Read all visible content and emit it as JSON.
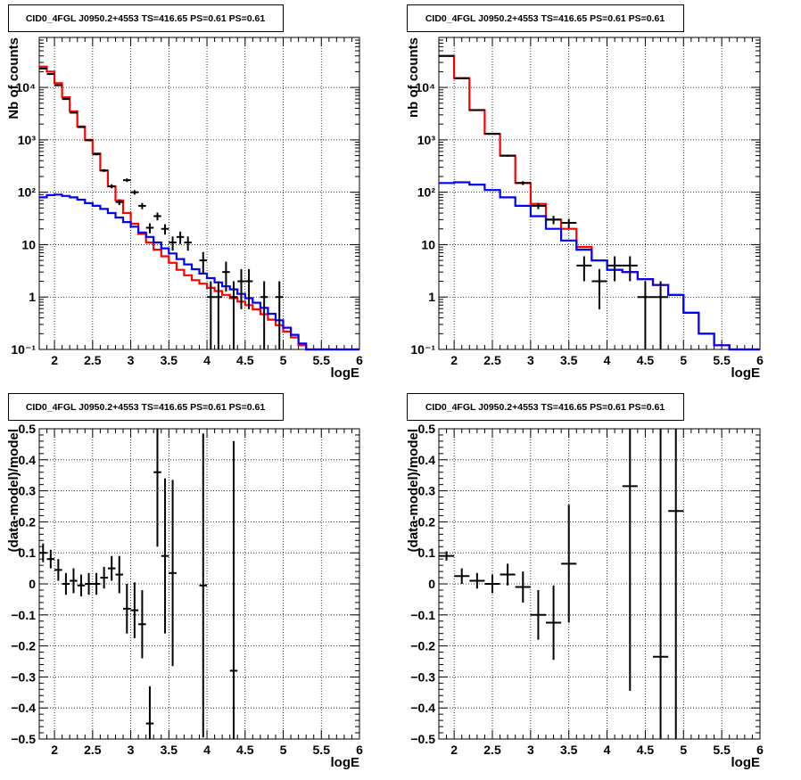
{
  "colors": {
    "data": "#000000",
    "model_total": "#ff0000",
    "model_component": "#0000ff",
    "grid": "#000000"
  },
  "chart_data": [
    {
      "type": "line",
      "title": "CID0_4FGL J0950.2+4553 TS=416.65 PS=0.61 PS=0.61",
      "xlabel": "logE",
      "ylabel": "Nb of counts",
      "xlim": [
        1.8,
        6.0
      ],
      "ylim": [
        0.1,
        90000
      ],
      "yscale": "log",
      "grid": true,
      "x_ticks": [
        "2",
        "2.5",
        "3",
        "3.5",
        "4",
        "4.5",
        "5",
        "5.5",
        "6"
      ],
      "y_ticks": [
        "10⁻¹",
        "1",
        "10",
        "10²",
        "10³",
        "10⁴"
      ],
      "bin_edges": [
        1.8,
        1.9,
        2.0,
        2.1,
        2.2,
        2.3,
        2.4,
        2.5,
        2.6,
        2.7,
        2.8,
        2.9,
        3.0,
        3.1,
        3.2,
        3.3,
        3.4,
        3.5,
        3.6,
        3.7,
        3.8,
        3.9,
        4.0,
        4.1,
        4.2,
        4.3,
        4.4,
        4.5,
        4.6,
        4.7,
        4.8,
        4.9,
        5.0,
        5.1,
        5.2,
        5.3,
        5.4,
        5.5,
        5.6,
        5.7,
        5.8,
        5.9,
        6.0
      ],
      "series": [
        {
          "role": "model_total",
          "values": [
            25000,
            20000,
            12000,
            6500,
            3500,
            1800,
            1000,
            550,
            260,
            130,
            70,
            40,
            25,
            16,
            11,
            8,
            6,
            4.5,
            3.3,
            2.6,
            2.1,
            1.8,
            1.5,
            1.3,
            1.1,
            0.95,
            0.82,
            0.7,
            0.58,
            0.47,
            0.37,
            0.29,
            0.22,
            0.17,
            0.12,
            0.1,
            0.1,
            0.1,
            0.1,
            0.1,
            0.1,
            0.1
          ]
        },
        {
          "role": "model_component",
          "values": [
            80,
            88,
            90,
            85,
            80,
            72,
            62,
            55,
            48,
            40,
            33,
            27,
            22,
            17,
            14,
            11,
            8.5,
            6.8,
            5.3,
            4.2,
            3.4,
            2.8,
            2.3,
            1.9,
            1.6,
            1.4,
            1.15,
            0.95,
            0.78,
            0.62,
            0.48,
            0.36,
            0.26,
            0.19,
            0.13,
            0.1,
            0.1,
            0.1,
            0.1,
            0.1,
            0.1,
            0.1
          ]
        },
        {
          "role": "data",
          "points": [
            {
              "x": 1.85,
              "y": 23000,
              "xerr": 0.05
            },
            {
              "x": 1.95,
              "y": 18000,
              "xerr": 0.05
            },
            {
              "x": 2.05,
              "y": 11000,
              "xerr": 0.05
            },
            {
              "x": 2.15,
              "y": 6000,
              "xerr": 0.05
            },
            {
              "x": 2.25,
              "y": 3300,
              "xerr": 0.05
            },
            {
              "x": 2.35,
              "y": 1750,
              "xerr": 0.05
            },
            {
              "x": 2.45,
              "y": 980,
              "xerr": 0.05
            },
            {
              "x": 2.55,
              "y": 530,
              "xerr": 0.05
            },
            {
              "x": 2.65,
              "y": 260,
              "xerr": 0.05
            },
            {
              "x": 2.75,
              "y": 130,
              "xerr": 0.05
            },
            {
              "x": 2.85,
              "y": 65,
              "xerr": 0.05
            },
            {
              "x": 2.95,
              "y": 170,
              "xerr": 0.05
            },
            {
              "x": 3.05,
              "y": 100,
              "xerr": 0.05
            },
            {
              "x": 3.15,
              "y": 55,
              "xerr": 0.05
            },
            {
              "x": 3.25,
              "y": 21,
              "xerr": 0.05
            },
            {
              "x": 3.35,
              "y": 35,
              "xerr": 0.05
            },
            {
              "x": 3.45,
              "y": 20,
              "xerr": 0.05
            },
            {
              "x": 3.55,
              "y": 11,
              "xerr": 0.05
            },
            {
              "x": 3.65,
              "y": 14,
              "xerr": 0.05
            },
            {
              "x": 3.75,
              "y": 11,
              "xerr": 0.05
            },
            {
              "x": 3.95,
              "y": 5,
              "xerr": 0.05
            },
            {
              "x": 4.05,
              "y": 1,
              "xerr": 0.05
            },
            {
              "x": 4.15,
              "y": 1,
              "xerr": 0.05
            },
            {
              "x": 4.25,
              "y": 3,
              "xerr": 0.05
            },
            {
              "x": 4.35,
              "y": 1,
              "xerr": 0.05
            },
            {
              "x": 4.45,
              "y": 2,
              "xerr": 0.05
            },
            {
              "x": 4.55,
              "y": 2,
              "xerr": 0.05
            },
            {
              "x": 4.75,
              "y": 1,
              "xerr": 0.05
            },
            {
              "x": 4.95,
              "y": 1,
              "xerr": 0.05
            }
          ]
        }
      ]
    },
    {
      "type": "line",
      "title": "CID0_4FGL J0950.2+4553 TS=416.65 PS=0.61 PS=0.61",
      "xlabel": "logE",
      "ylabel": "nb of counts",
      "xlim": [
        1.8,
        6.0
      ],
      "ylim": [
        0.1,
        90000
      ],
      "yscale": "log",
      "grid": true,
      "x_ticks": [
        "2",
        "2.5",
        "3",
        "3.5",
        "4",
        "4.5",
        "5",
        "5.5",
        "6"
      ],
      "y_ticks": [
        "10⁻¹",
        "1",
        "10",
        "10²",
        "10³",
        "10⁴"
      ],
      "bin_edges": [
        1.8,
        2.0,
        2.2,
        2.4,
        2.6,
        2.8,
        3.0,
        3.2,
        3.4,
        3.6,
        3.8,
        4.0,
        4.2,
        4.4,
        4.6,
        4.8,
        5.0,
        5.2,
        5.4,
        5.6,
        5.8,
        6.0
      ],
      "series": [
        {
          "role": "model_total",
          "values": [
            40000,
            15000,
            3700,
            1300,
            500,
            150,
            60,
            30,
            20,
            9,
            5,
            3.3,
            3.0,
            2.2,
            1.7,
            1.1,
            0.5,
            0.2,
            0.12,
            0.1,
            0.1
          ]
        },
        {
          "role": "model_component",
          "values": [
            150,
            155,
            140,
            110,
            80,
            55,
            35,
            20,
            12,
            8,
            5,
            3.3,
            3.0,
            2.2,
            1.7,
            1.1,
            0.5,
            0.2,
            0.12,
            0.1,
            0.1
          ]
        },
        {
          "role": "data",
          "points": [
            {
              "x": 1.9,
              "y": 40000,
              "xerr": 0.1
            },
            {
              "x": 2.1,
              "y": 15000,
              "xerr": 0.1
            },
            {
              "x": 2.3,
              "y": 3700,
              "xerr": 0.1
            },
            {
              "x": 2.5,
              "y": 1300,
              "xerr": 0.1
            },
            {
              "x": 2.7,
              "y": 500,
              "xerr": 0.1
            },
            {
              "x": 2.9,
              "y": 150,
              "xerr": 0.1
            },
            {
              "x": 3.1,
              "y": 55,
              "xerr": 0.1
            },
            {
              "x": 3.3,
              "y": 30,
              "xerr": 0.1
            },
            {
              "x": 3.5,
              "y": 26,
              "xerr": 0.1
            },
            {
              "x": 3.7,
              "y": 4,
              "xerr": 0.1
            },
            {
              "x": 3.9,
              "y": 2,
              "xerr": 0.1
            },
            {
              "x": 4.1,
              "y": 4,
              "xerr": 0.1
            },
            {
              "x": 4.3,
              "y": 4,
              "xerr": 0.1
            },
            {
              "x": 4.5,
              "y": 1,
              "xerr": 0.1
            },
            {
              "x": 4.7,
              "y": 1,
              "xerr": 0.1
            }
          ]
        }
      ]
    },
    {
      "type": "scatter",
      "title": "CID0_4FGL J0950.2+4553 TS=416.65 PS=0.61 PS=0.61",
      "xlabel": "logE",
      "ylabel": "(data-model)/model",
      "xlim": [
        1.8,
        6.0
      ],
      "ylim": [
        -0.5,
        0.5
      ],
      "yscale": "linear",
      "grid": true,
      "x_ticks": [
        "2",
        "2.5",
        "3",
        "3.5",
        "4",
        "4.5",
        "5",
        "5.5",
        "6"
      ],
      "y_ticks": [
        "−0.5",
        "−0.4",
        "−0.3",
        "−0.2",
        "−0.1",
        "0",
        "0.1",
        "0.2",
        "0.3",
        "0.4",
        "0.5"
      ],
      "series": [
        {
          "role": "data",
          "points": [
            {
              "x": 1.85,
              "y": 0.1,
              "xerr": 0.05,
              "yerr": 0.03
            },
            {
              "x": 1.95,
              "y": 0.08,
              "xerr": 0.05,
              "yerr": 0.03
            },
            {
              "x": 2.05,
              "y": 0.045,
              "xerr": 0.05,
              "yerr": 0.035
            },
            {
              "x": 2.15,
              "y": 0.0,
              "xerr": 0.05,
              "yerr": 0.035
            },
            {
              "x": 2.25,
              "y": 0.01,
              "xerr": 0.05,
              "yerr": 0.04
            },
            {
              "x": 2.35,
              "y": -0.005,
              "xerr": 0.05,
              "yerr": 0.035
            },
            {
              "x": 2.45,
              "y": 0.0,
              "xerr": 0.05,
              "yerr": 0.035
            },
            {
              "x": 2.55,
              "y": 0.0,
              "xerr": 0.05,
              "yerr": 0.035
            },
            {
              "x": 2.65,
              "y": 0.02,
              "xerr": 0.05,
              "yerr": 0.035
            },
            {
              "x": 2.75,
              "y": 0.05,
              "xerr": 0.05,
              "yerr": 0.04
            },
            {
              "x": 2.85,
              "y": 0.03,
              "xerr": 0.05,
              "yerr": 0.06
            },
            {
              "x": 2.95,
              "y": -0.08,
              "xerr": 0.05,
              "yerr": 0.08
            },
            {
              "x": 3.05,
              "y": -0.085,
              "xerr": 0.05,
              "yerr": 0.09
            },
            {
              "x": 3.15,
              "y": -0.13,
              "xerr": 0.05,
              "yerr": 0.11
            },
            {
              "x": 3.25,
              "y": -0.45,
              "xerr": 0.05,
              "yerr": 0.12
            },
            {
              "x": 3.35,
              "y": 0.36,
              "xerr": 0.05,
              "yerr": 0.24
            },
            {
              "x": 3.45,
              "y": 0.09,
              "xerr": 0.05,
              "yerr": 0.25
            },
            {
              "x": 3.55,
              "y": 0.035,
              "xerr": 0.05,
              "yerr": 0.3
            },
            {
              "x": 3.95,
              "y": -0.005,
              "xerr": 0.05,
              "yerr": 0.49
            },
            {
              "x": 4.35,
              "y": -0.28,
              "xerr": 0.05,
              "yerr": 0.74
            }
          ]
        }
      ]
    },
    {
      "type": "scatter",
      "title": "CID0_4FGL J0950.2+4553 TS=416.65 PS=0.61 PS=0.61",
      "xlabel": "logE",
      "ylabel": "(data-model)/model",
      "xlim": [
        1.8,
        6.0
      ],
      "ylim": [
        -0.5,
        0.5
      ],
      "yscale": "linear",
      "grid": true,
      "x_ticks": [
        "2",
        "2.5",
        "3",
        "3.5",
        "4",
        "4.5",
        "5",
        "5.5",
        "6"
      ],
      "y_ticks": [
        "−0.5",
        "−0.4",
        "−0.3",
        "−0.2",
        "−0.1",
        "0",
        "0.1",
        "0.2",
        "0.3",
        "0.4",
        "0.5"
      ],
      "series": [
        {
          "role": "data",
          "points": [
            {
              "x": 1.9,
              "y": 0.09,
              "xerr": 0.1,
              "yerr": 0.015
            },
            {
              "x": 2.1,
              "y": 0.025,
              "xerr": 0.1,
              "yerr": 0.025
            },
            {
              "x": 2.3,
              "y": 0.01,
              "xerr": 0.1,
              "yerr": 0.025
            },
            {
              "x": 2.5,
              "y": 0.0,
              "xerr": 0.1,
              "yerr": 0.03
            },
            {
              "x": 2.7,
              "y": 0.03,
              "xerr": 0.1,
              "yerr": 0.035
            },
            {
              "x": 2.9,
              "y": -0.01,
              "xerr": 0.1,
              "yerr": 0.05
            },
            {
              "x": 3.1,
              "y": -0.1,
              "xerr": 0.1,
              "yerr": 0.08
            },
            {
              "x": 3.3,
              "y": -0.125,
              "xerr": 0.1,
              "yerr": 0.12
            },
            {
              "x": 3.5,
              "y": 0.065,
              "xerr": 0.1,
              "yerr": 0.19
            },
            {
              "x": 4.3,
              "y": 0.315,
              "xerr": 0.1,
              "yerr": 0.66
            },
            {
              "x": 4.7,
              "y": -0.235,
              "xerr": 0.1,
              "yerr": 0.8
            },
            {
              "x": 4.9,
              "y": 0.235,
              "xerr": 0.1,
              "yerr": 0.8
            }
          ]
        }
      ]
    }
  ]
}
